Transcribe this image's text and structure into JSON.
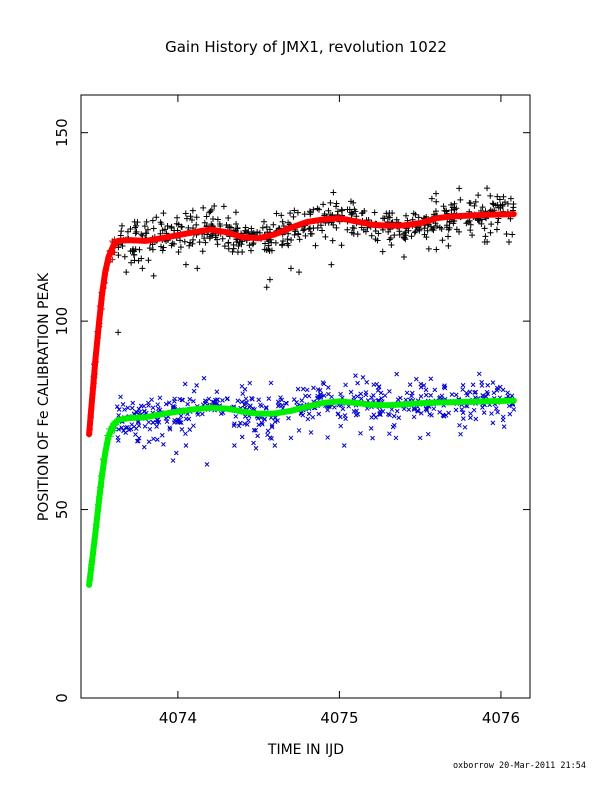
{
  "chart_data": {
    "type": "scatter",
    "title": "Gain History of JMX1, revolution 1022",
    "xlabel": "TIME IN IJD",
    "ylabel": "POSITION OF Fe CALIBRATION PEAK",
    "xlim": [
      4073.4,
      4076.18
    ],
    "ylim": [
      0,
      160
    ],
    "xticks": [
      4074,
      4075,
      4076
    ],
    "yticks": [
      0,
      50,
      100,
      150
    ],
    "grid": false,
    "legend": "none",
    "colors": {
      "series_upper_points": "#000000",
      "series_upper_early_points": "#cc0000",
      "series_upper_fit": "#ff0000",
      "series_lower_points": "#0000cc",
      "series_lower_early_points": "#22cc22",
      "series_lower_fit": "#00ee00"
    },
    "series": [
      {
        "role": "upper_fit",
        "marker": "line",
        "points": [
          [
            4073.45,
            70
          ],
          [
            4073.47,
            80
          ],
          [
            4073.49,
            90
          ],
          [
            4073.51,
            99
          ],
          [
            4073.53,
            107
          ],
          [
            4073.55,
            113
          ],
          [
            4073.57,
            117
          ],
          [
            4073.6,
            120
          ],
          [
            4073.63,
            121.3
          ],
          [
            4073.7,
            121.5
          ],
          [
            4073.8,
            121.3
          ],
          [
            4073.9,
            122.0
          ],
          [
            4074.0,
            122.8
          ],
          [
            4074.1,
            123.6
          ],
          [
            4074.2,
            124.3
          ],
          [
            4074.3,
            123.6
          ],
          [
            4074.4,
            122.3
          ],
          [
            4074.5,
            122.0
          ],
          [
            4074.6,
            123.0
          ],
          [
            4074.7,
            124.8
          ],
          [
            4074.8,
            126.3
          ],
          [
            4074.9,
            127.0
          ],
          [
            4075.0,
            127.3
          ],
          [
            4075.1,
            126.5
          ],
          [
            4075.2,
            125.6
          ],
          [
            4075.3,
            125.3
          ],
          [
            4075.4,
            125.4
          ],
          [
            4075.5,
            126.0
          ],
          [
            4075.6,
            127.3
          ],
          [
            4075.7,
            127.8
          ],
          [
            4075.8,
            128.0
          ],
          [
            4075.9,
            128.2
          ],
          [
            4076.0,
            128.3
          ],
          [
            4076.08,
            128.4
          ]
        ]
      },
      {
        "role": "lower_fit",
        "marker": "line",
        "points": [
          [
            4073.45,
            30
          ],
          [
            4073.47,
            37
          ],
          [
            4073.49,
            44
          ],
          [
            4073.51,
            52
          ],
          [
            4073.53,
            59
          ],
          [
            4073.55,
            65
          ],
          [
            4073.57,
            69.5
          ],
          [
            4073.6,
            72.5
          ],
          [
            4073.63,
            73.8
          ],
          [
            4073.7,
            74.3
          ],
          [
            4073.8,
            74.5
          ],
          [
            4073.9,
            75.3
          ],
          [
            4074.0,
            76.0
          ],
          [
            4074.1,
            76.6
          ],
          [
            4074.2,
            77.0
          ],
          [
            4074.3,
            76.8
          ],
          [
            4074.4,
            76.0
          ],
          [
            4074.5,
            75.4
          ],
          [
            4074.6,
            75.5
          ],
          [
            4074.7,
            76.2
          ],
          [
            4074.8,
            77.3
          ],
          [
            4074.9,
            78.3
          ],
          [
            4075.0,
            78.7
          ],
          [
            4075.1,
            78.3
          ],
          [
            4075.2,
            77.8
          ],
          [
            4075.3,
            77.7
          ],
          [
            4075.4,
            77.9
          ],
          [
            4075.5,
            78.2
          ],
          [
            4075.6,
            78.4
          ],
          [
            4075.7,
            78.5
          ],
          [
            4075.8,
            78.6
          ],
          [
            4075.9,
            78.7
          ],
          [
            4076.0,
            78.8
          ],
          [
            4076.08,
            78.9
          ]
        ]
      },
      {
        "role": "upper_points",
        "marker": "plus",
        "x_range": [
          4073.45,
          4076.08
        ],
        "count": 620,
        "scatter_sd": 2.6,
        "outliers": [
          [
            4073.63,
            97
          ],
          [
            4073.68,
            113
          ],
          [
            4073.78,
            114
          ],
          [
            4073.85,
            112
          ],
          [
            4074.05,
            115
          ],
          [
            4074.12,
            114
          ],
          [
            4074.55,
            109
          ],
          [
            4074.57,
            111
          ],
          [
            4074.7,
            114
          ],
          [
            4074.75,
            113
          ],
          [
            4074.95,
            115
          ],
          [
            4075.4,
            117
          ],
          [
            4075.6,
            119
          ],
          [
            4075.9,
            121
          ],
          [
            4076.05,
            121
          ],
          [
            4076.07,
            123
          ]
        ]
      },
      {
        "role": "lower_points",
        "marker": "cross",
        "x_range": [
          4073.45,
          4076.08
        ],
        "count": 560,
        "scatter_sd": 3.2,
        "outliers": [
          [
            4073.97,
            63
          ],
          [
            4073.99,
            65
          ],
          [
            4074.18,
            62
          ],
          [
            4074.05,
            67
          ],
          [
            4074.35,
            67
          ],
          [
            4074.6,
            67
          ],
          [
            4074.7,
            69
          ],
          [
            4074.75,
            71
          ],
          [
            4075.03,
            67
          ],
          [
            4075.35,
            69
          ],
          [
            4075.5,
            69
          ],
          [
            4075.55,
            70
          ],
          [
            4075.75,
            70
          ],
          [
            4075.95,
            73
          ],
          [
            4076.02,
            72
          ]
        ]
      }
    ]
  },
  "footer": {
    "credit": "oxborrow 20-Mar-2011 21:54"
  }
}
